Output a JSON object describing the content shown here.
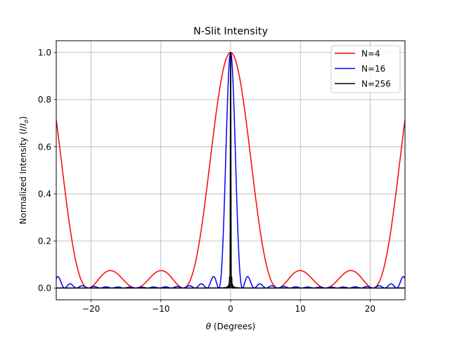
{
  "chart_data": {
    "type": "line",
    "title": "N-Slit Intensity",
    "xlabel_symbol": "θ",
    "xlabel_text": " (Degrees)",
    "ylabel_text": "Normalized Intensity (",
    "ylabel_i": "I",
    "ylabel_slash": "/",
    "ylabel_i0": "I",
    "ylabel_sub": "o",
    "ylabel_close": ")",
    "xlim": [
      -25,
      25
    ],
    "ylim": [
      -0.05,
      1.05
    ],
    "xticks": [
      -20,
      -10,
      0,
      10,
      20
    ],
    "xtick_labels": [
      "−20",
      "−10",
      "0",
      "10",
      "20"
    ],
    "yticks": [
      0.0,
      0.2,
      0.4,
      0.6,
      0.8,
      1.0
    ],
    "ytick_labels": [
      "0.0",
      "0.2",
      "0.4",
      "0.6",
      "0.8",
      "1.0"
    ],
    "grid": true,
    "legend_position": "top-right",
    "series": [
      {
        "name": "N=4",
        "color": "#ff0000",
        "N": 4,
        "zero_spacing_deg": 6.8,
        "max": 1.0
      },
      {
        "name": "N=16",
        "color": "#0000ff",
        "N": 16,
        "zero_spacing_deg": 1.7,
        "max": 1.0
      },
      {
        "name": "N=256",
        "color": "#000000",
        "N": 256,
        "zero_spacing_deg": 0.106,
        "max": 1.0
      }
    ]
  }
}
